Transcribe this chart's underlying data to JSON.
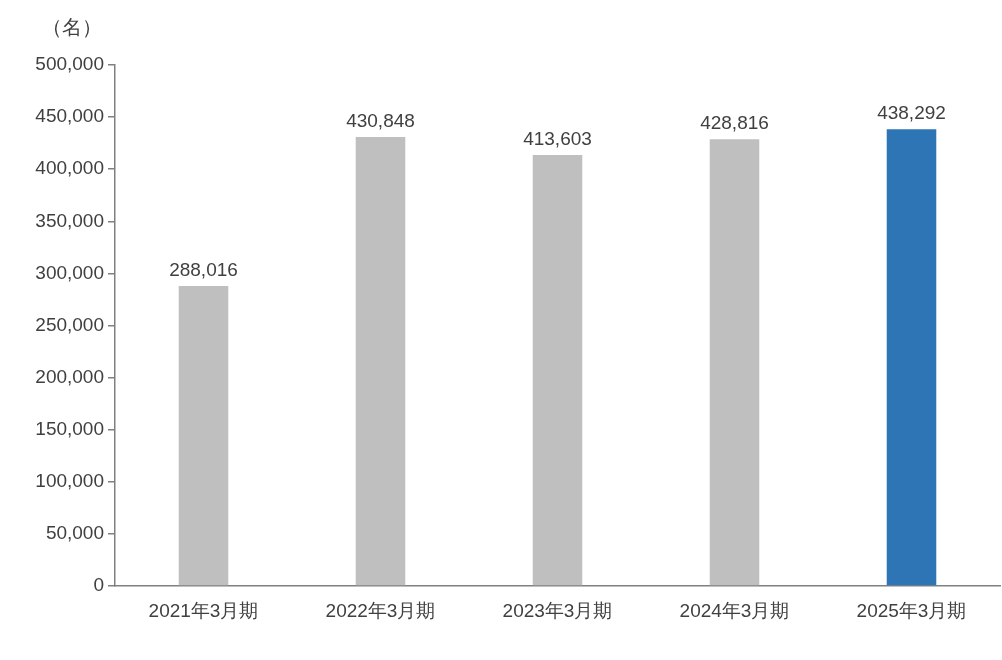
{
  "chart_data": {
    "type": "bar",
    "ylabel": "（名）",
    "categories": [
      "2021年3月期",
      "2022年3月期",
      "2023年3月期",
      "2024年3月期",
      "2025年3月期"
    ],
    "values": [
      288016,
      430848,
      413603,
      428816,
      438292
    ],
    "value_labels": [
      "288,016",
      "430,848",
      "413,603",
      "428,816",
      "438,292"
    ],
    "colors": [
      "#bfbfbf",
      "#bfbfbf",
      "#bfbfbf",
      "#bfbfbf",
      "#2e75b6"
    ],
    "ylim": [
      0,
      500000
    ],
    "yticks": [
      0,
      {
        "value": 50000,
        "label": "50,000"
      },
      {
        "value": 100000,
        "label": "100,000"
      },
      {
        "value": 150000,
        "label": "150,000"
      },
      {
        "value": 200000,
        "label": "200,000"
      },
      {
        "value": 250000,
        "label": "250,000"
      },
      {
        "value": 300000,
        "label": "300,000"
      },
      {
        "value": 350000,
        "label": "350,000"
      },
      {
        "value": 400000,
        "label": "400,000"
      },
      {
        "value": 450000,
        "label": "450,000"
      },
      {
        "value": 500000,
        "label": "500,000"
      }
    ],
    "grid": false,
    "legend": false
  }
}
